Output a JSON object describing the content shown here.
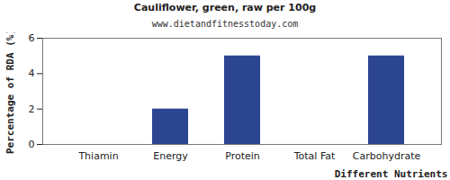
{
  "chart_data": {
    "type": "bar",
    "title": "Cauliflower, green, raw per 100g",
    "subtitle": "www.dietandfitnesstoday.com",
    "x_label": "Different Nutrients",
    "y_label": "Percentage of RDA (%)",
    "categories": [
      "Thiamin",
      "Energy",
      "Protein",
      "Total Fat",
      "Carbohydrate"
    ],
    "values": [
      0,
      2,
      5,
      0,
      5
    ],
    "color": "#2b4591",
    "ylim": [
      0,
      6
    ],
    "yticks": [
      0,
      2,
      4,
      6
    ],
    "grid": false
  }
}
